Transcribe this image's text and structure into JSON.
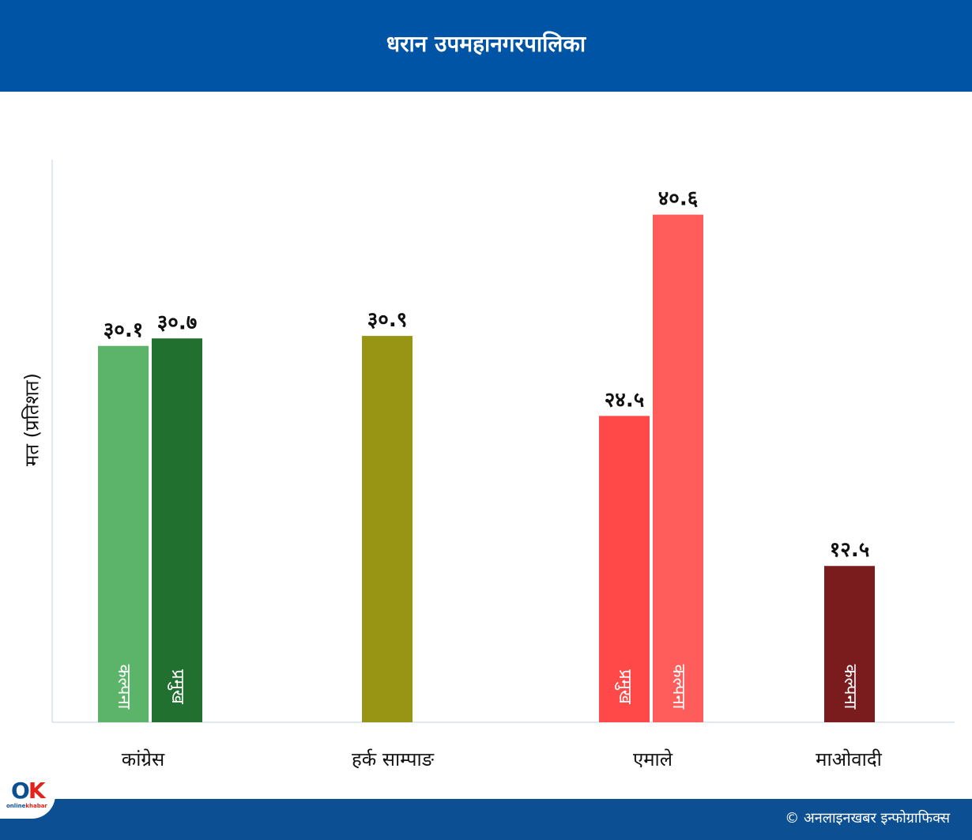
{
  "header": {
    "title": "धरान उपमहानगरपालिका"
  },
  "footer": {
    "credit": "© अनलाइनखबर इन्फोग्राफिक्स"
  },
  "logo": {
    "mark_o": "O",
    "mark_k": "K",
    "word_a": "online",
    "word_b": "khabar"
  },
  "chart_data": {
    "type": "bar",
    "title": "धरान उपमहानगरपालिका",
    "ylabel": "मत (प्रतिशत)",
    "xlabel": "",
    "ylim": [
      0,
      45
    ],
    "grid": false,
    "categories": [
      "कांग्रेस",
      "हर्क  साम्पाङ",
      "एमाले",
      "माओवादी"
    ],
    "bars": [
      {
        "category": "कांग्रेस",
        "value": 30.1,
        "value_label": "३०.१",
        "inner_label": "कल्पना",
        "color": "#5cb46a"
      },
      {
        "category": "कांग्रेस",
        "value": 30.7,
        "value_label": "३०.७",
        "inner_label": "प्रमुख",
        "color": "#21702f"
      },
      {
        "category": "हर्क  साम्पाङ",
        "value": 30.9,
        "value_label": "३०.९",
        "inner_label": "",
        "color": "#999514"
      },
      {
        "category": "एमाले",
        "value": 24.5,
        "value_label": "२४.५",
        "inner_label": "प्रमुख",
        "color": "#ff4848"
      },
      {
        "category": "एमाले",
        "value": 40.6,
        "value_label": "४०.६",
        "inner_label": "कल्पना",
        "color": "#ff5c5c"
      },
      {
        "category": "माओवादी",
        "value": 12.5,
        "value_label": "१२.५",
        "inner_label": "कल्पना",
        "color": "#7a1c1e"
      }
    ]
  }
}
